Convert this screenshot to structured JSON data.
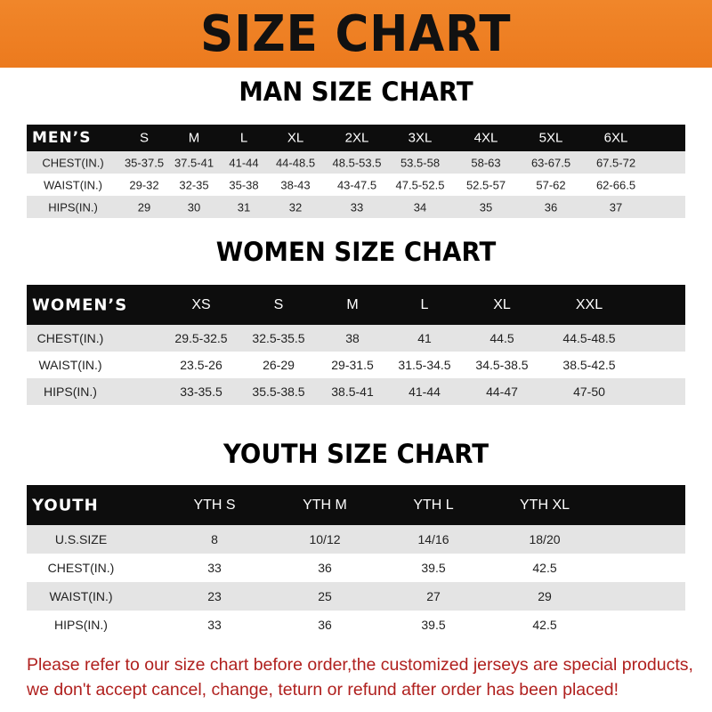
{
  "header": {
    "title": "SIZE CHART",
    "color": "#ee8024"
  },
  "men": {
    "title": "MAN SIZE CHART",
    "header": [
      "MEN’S",
      "S",
      "M",
      "L",
      "XL",
      "2XL",
      "3XL",
      "4XL",
      "5XL",
      "6XL"
    ],
    "rows": [
      [
        "CHEST(IN.)",
        "35-37.5",
        "37.5-41",
        "41-44",
        "44-48.5",
        "48.5-53.5",
        "53.5-58",
        "58-63",
        "63-67.5",
        "67.5-72"
      ],
      [
        "WAIST(IN.)",
        "29-32",
        "32-35",
        "35-38",
        "38-43",
        "43-47.5",
        "47.5-52.5",
        "52.5-57",
        "57-62",
        "62-66.5"
      ],
      [
        "HIPS(IN.)",
        "29",
        "30",
        "31",
        "32",
        "33",
        "34",
        "35",
        "36",
        "37"
      ]
    ]
  },
  "women": {
    "title": "WOMEN SIZE CHART",
    "header": [
      "WOMEN’S",
      "XS",
      "S",
      "M",
      "L",
      "XL",
      "XXL"
    ],
    "rows": [
      [
        "CHEST(IN.)",
        "29.5-32.5",
        "32.5-35.5",
        "38",
        "41",
        "44.5",
        "44.5-48.5"
      ],
      [
        "WAIST(IN.)",
        "23.5-26",
        "26-29",
        "29-31.5",
        "31.5-34.5",
        "34.5-38.5",
        "38.5-42.5"
      ],
      [
        "HIPS(IN.)",
        "33-35.5",
        "35.5-38.5",
        "38.5-41",
        "41-44",
        "44-47",
        "47-50"
      ]
    ]
  },
  "youth": {
    "title": "YOUTH SIZE CHART",
    "header": [
      "YOUTH",
      "YTH S",
      "YTH M",
      "YTH L",
      "YTH XL"
    ],
    "rows": [
      [
        "U.S.SIZE",
        "8",
        "10/12",
        "14/16",
        "18/20"
      ],
      [
        "CHEST(IN.)",
        "33",
        "36",
        "39.5",
        "42.5"
      ],
      [
        "WAIST(IN.)",
        "23",
        "25",
        "27",
        "29"
      ],
      [
        "HIPS(IN.)",
        "33",
        "36",
        "39.5",
        "42.5"
      ]
    ]
  },
  "note": {
    "line1": "Please refer to our size chart before order,the customized jerseys are special products,",
    "line2": "we don't accept cancel, change, teturn or refund after order has been placed!",
    "color": "#b0201e"
  }
}
